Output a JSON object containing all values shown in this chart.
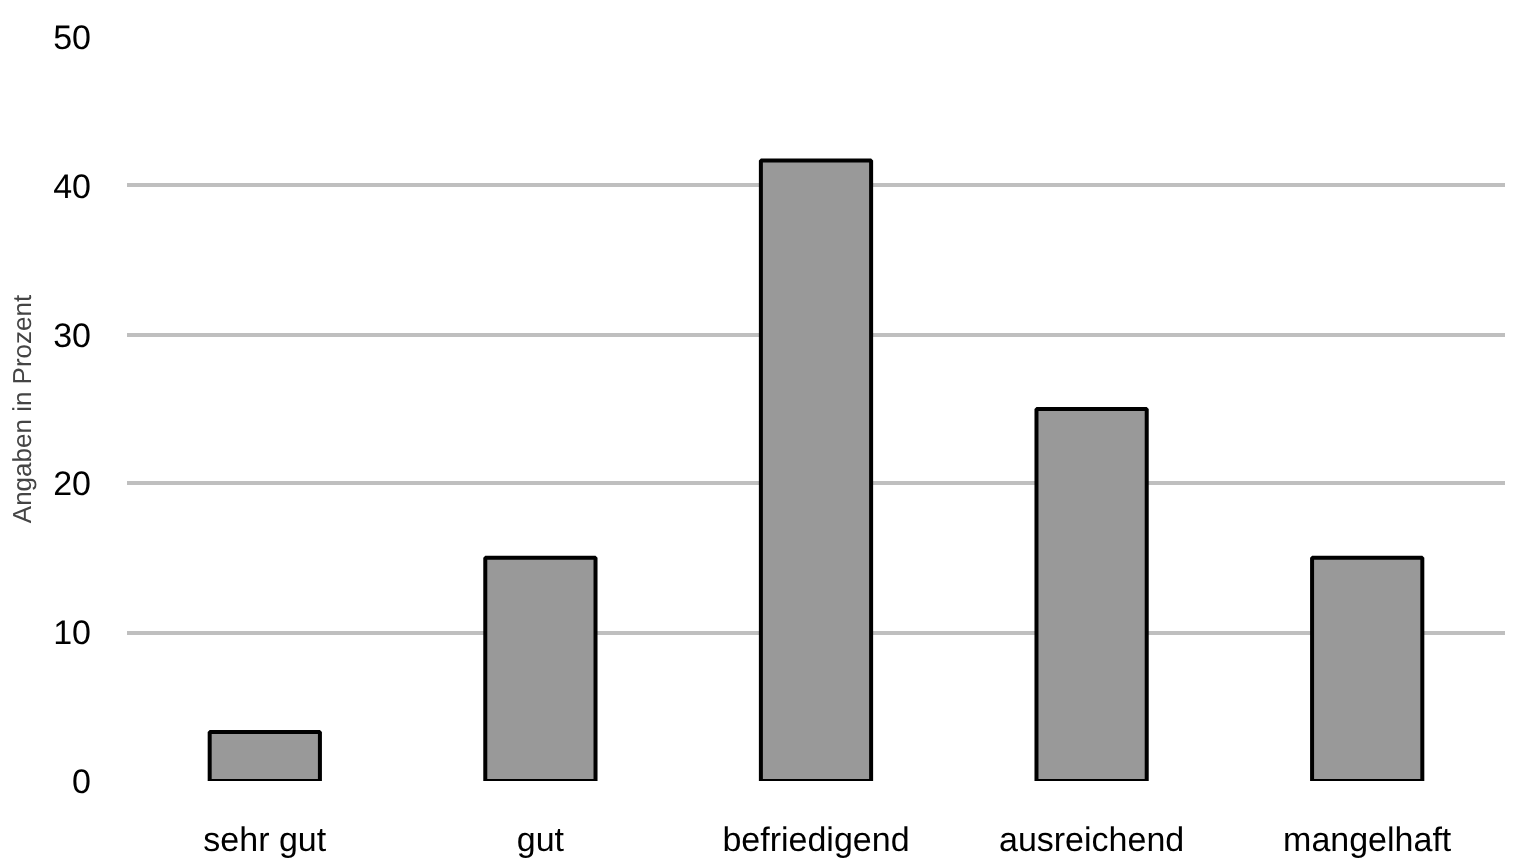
{
  "chart_data": {
    "type": "bar",
    "ylabel": "Angaben in Prozent",
    "categories": [
      "sehr gut",
      "gut",
      "befriedigend",
      "ausreichend",
      "mangelhaft"
    ],
    "values": [
      3.3,
      15,
      41.7,
      25,
      15
    ],
    "color": "#999999",
    "ylim": [
      0,
      50
    ],
    "yticks": [
      0,
      10,
      20,
      30,
      40,
      50
    ],
    "grid": "y"
  }
}
